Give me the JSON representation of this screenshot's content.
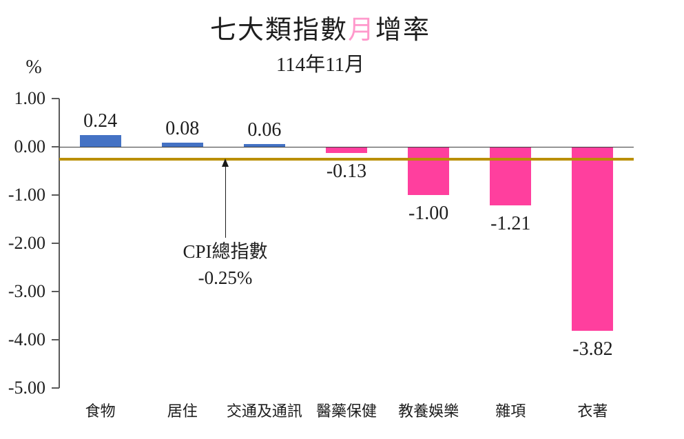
{
  "title": {
    "prefix": "七大類指數",
    "highlight": "月",
    "suffix": "增率",
    "highlight_color": "#FF99CC"
  },
  "subtitle": "114年11月",
  "y_axis_unit": "%",
  "chart_data": {
    "type": "bar",
    "title": "七大類指數月增率",
    "subtitle": "114年11月",
    "ylabel": "%",
    "xlabel": "",
    "ylim": [
      -5.0,
      1.0
    ],
    "y_tick_step": 1.0,
    "grid": false,
    "legend": false,
    "y_tick_labels": [
      "1.00",
      "0.00",
      "-1.00",
      "-2.00",
      "-3.00",
      "-4.00",
      "-5.00"
    ],
    "categories": [
      "食物",
      "居住",
      "交通及通訊",
      "醫藥保健",
      "教養娛樂",
      "雜項",
      "衣著"
    ],
    "values": [
      0.24,
      0.08,
      0.06,
      -0.13,
      -1.0,
      -1.21,
      -3.82
    ],
    "value_labels": [
      "0.24",
      "0.08",
      "0.06",
      "-0.13",
      "-1.00",
      "-1.21",
      "-3.82"
    ],
    "bar_colors": {
      "positive": "#4472C4",
      "negative": "#FF3F9E"
    },
    "reference_line": {
      "value": -0.25,
      "color": "#BA8F00",
      "label": "CPI總指數",
      "label_value": "-0.25%"
    }
  }
}
